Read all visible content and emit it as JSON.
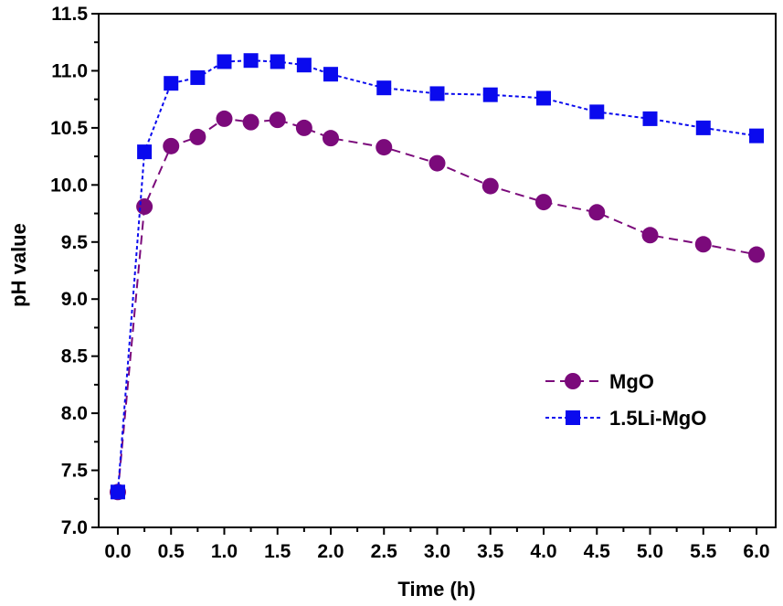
{
  "chart_data": {
    "type": "line",
    "title": "",
    "xlabel": "Time (h)",
    "ylabel": "pH value",
    "xlim": [
      -0.18,
      6.18
    ],
    "ylim": [
      7.0,
      11.5
    ],
    "xticks": [
      "0.0",
      "0.5",
      "1.0",
      "1.5",
      "2.0",
      "2.5",
      "3.0",
      "3.5",
      "4.0",
      "4.5",
      "5.0",
      "5.5",
      "6.0"
    ],
    "yticks": [
      "7.0",
      "7.5",
      "8.0",
      "8.5",
      "9.0",
      "9.5",
      "10.0",
      "10.5",
      "11.0",
      "11.5"
    ],
    "grid": false,
    "legend_position": "lower-right",
    "series": [
      {
        "name": "MgO",
        "color": "#7b0a7b",
        "marker": "circle",
        "line_style": "dashed",
        "x": [
          0,
          0.25,
          0.5,
          0.75,
          1.0,
          1.25,
          1.5,
          1.75,
          2.0,
          2.5,
          3.0,
          3.5,
          4.0,
          4.5,
          5.0,
          5.5,
          6.0
        ],
        "y": [
          7.31,
          9.81,
          10.34,
          10.42,
          10.58,
          10.55,
          10.57,
          10.5,
          10.41,
          10.33,
          10.19,
          9.99,
          9.85,
          9.76,
          9.56,
          9.48,
          9.39
        ]
      },
      {
        "name": "1.5Li-MgO",
        "color": "#0a0aee",
        "marker": "square",
        "line_style": "dotted",
        "x": [
          0,
          0.25,
          0.5,
          0.75,
          1.0,
          1.25,
          1.5,
          1.75,
          2.0,
          2.5,
          3.0,
          3.5,
          4.0,
          4.5,
          5.0,
          5.5,
          6.0
        ],
        "y": [
          7.31,
          10.29,
          10.89,
          10.94,
          11.08,
          11.09,
          11.08,
          11.05,
          10.97,
          10.85,
          10.8,
          10.79,
          10.76,
          10.64,
          10.58,
          10.5,
          10.43
        ]
      }
    ]
  }
}
